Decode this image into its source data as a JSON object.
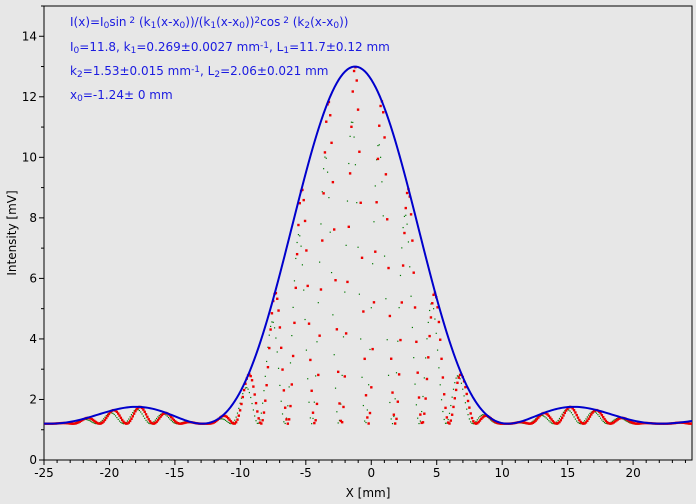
{
  "chart_data": {
    "type": "scatter",
    "xlabel": "X [mm]",
    "ylabel": "Intensity [mV]",
    "xlim": [
      -25,
      24.5
    ],
    "ylim": [
      0,
      15
    ],
    "x_ticks": [
      -25,
      -20,
      -15,
      -10,
      -5,
      0,
      5,
      10,
      15,
      20
    ],
    "y_ticks": [
      0,
      2,
      4,
      6,
      8,
      10,
      12,
      14
    ],
    "grid": false,
    "colors": {
      "plot_bg": "#e7e7e7",
      "fit": "#0000cc",
      "data": "#ee0000",
      "data2": "#007700",
      "formula": "#1a1ae0"
    },
    "annotations": [
      {
        "name": "formula-line-1",
        "segments": [
          [
            "I(x)=I",
            "normal"
          ],
          [
            "0",
            "sub"
          ],
          [
            "sin",
            "normal"
          ],
          [
            " 2",
            "sup"
          ],
          [
            " (k",
            "normal"
          ],
          [
            "1",
            "sub"
          ],
          [
            "(x-x",
            "normal"
          ],
          [
            "0",
            "sub"
          ],
          [
            "))/(k",
            "normal"
          ],
          [
            "1",
            "sub"
          ],
          [
            "(x-x",
            "normal"
          ],
          [
            "0",
            "sub"
          ],
          [
            "))",
            "normal"
          ],
          [
            "2",
            "sup"
          ],
          [
            "cos",
            "normal"
          ],
          [
            " 2",
            "sup"
          ],
          [
            " (k",
            "normal"
          ],
          [
            "2",
            "sub"
          ],
          [
            "(x-x",
            "normal"
          ],
          [
            "0",
            "sub"
          ],
          [
            "))",
            "normal"
          ]
        ]
      },
      {
        "name": "formula-line-2",
        "segments": [
          [
            "I",
            "normal"
          ],
          [
            "0",
            "sub"
          ],
          [
            "=11.8,  k",
            "normal"
          ],
          [
            "1",
            "sub"
          ],
          [
            "=0.269±0.0027 mm",
            "normal"
          ],
          [
            "-1",
            "sup"
          ],
          [
            ",   L",
            "normal"
          ],
          [
            "1",
            "sub"
          ],
          [
            "=11.7±0.12 mm",
            "normal"
          ]
        ]
      },
      {
        "name": "formula-line-3",
        "segments": [
          [
            "k",
            "normal"
          ],
          [
            "2",
            "sub"
          ],
          [
            "=1.53±0.015 mm",
            "normal"
          ],
          [
            "-1",
            "sup"
          ],
          [
            ",   L",
            "normal"
          ],
          [
            "2",
            "sub"
          ],
          [
            "=2.06±0.021 mm",
            "normal"
          ]
        ]
      },
      {
        "name": "formula-line-4",
        "segments": [
          [
            "x",
            "normal"
          ],
          [
            "0",
            "sub"
          ],
          [
            "=-1.24±  0 mm",
            "normal"
          ]
        ]
      }
    ],
    "model": {
      "I0": 11.8,
      "k1": 0.269,
      "k2": 1.53,
      "x0": -1.24,
      "offset": 1.2
    },
    "series": [
      {
        "kind": "envelope-fit",
        "x_range": [
          -25,
          24.5
        ],
        "samples": 300
      },
      {
        "kind": "measured",
        "x_range": [
          -25,
          24.5
        ],
        "samples": 490
      },
      {
        "kind": "measured-secondary",
        "x_range": [
          -25,
          24.5
        ],
        "samples": 490
      }
    ]
  }
}
